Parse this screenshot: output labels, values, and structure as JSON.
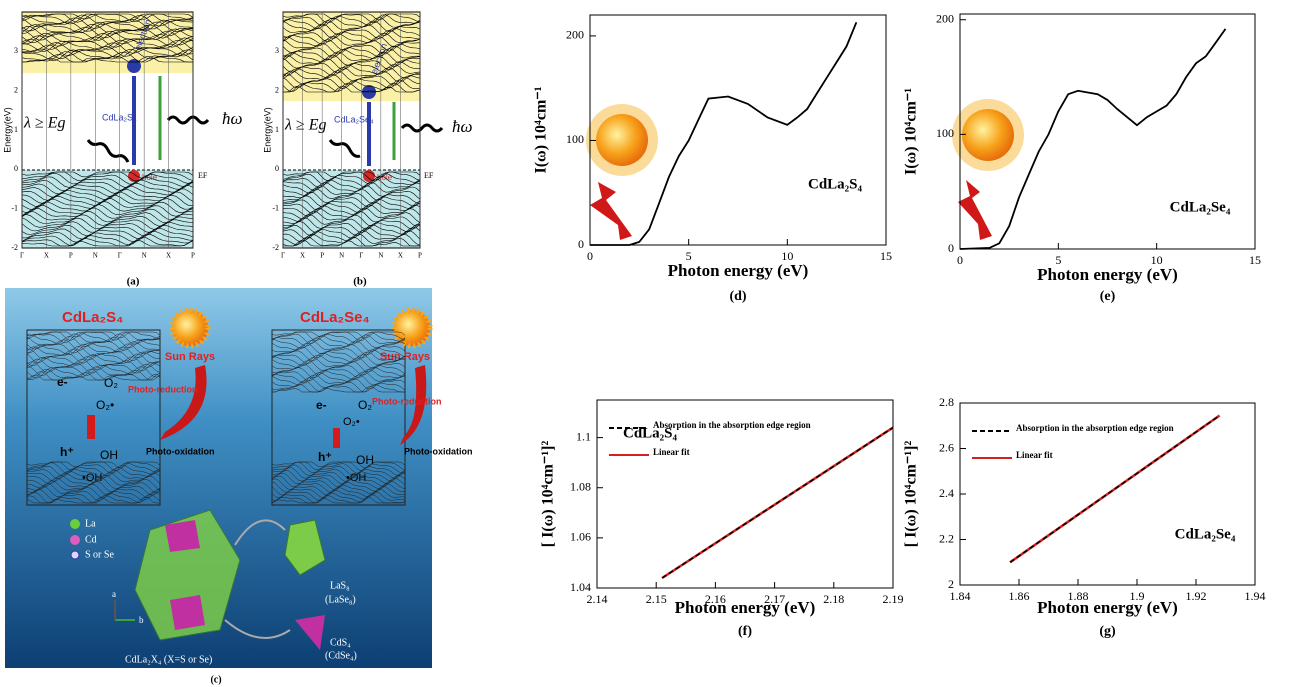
{
  "figure": {
    "panel_a": {
      "caption": "(a)",
      "ylabel": "Energy(eV)",
      "yticks": [
        3,
        2,
        1,
        0,
        -1,
        -2
      ],
      "kpoints": [
        "Γ",
        "X",
        "P",
        "N",
        "Γ",
        "N",
        "X",
        "P"
      ],
      "electron": "electron",
      "hole": "hole",
      "compound": "CdLa₂S₄",
      "lambda": "λ ≥ Eg",
      "emission": "ħω",
      "fermi": "EF"
    },
    "panel_b": {
      "caption": "(b)",
      "ylabel": "Energy(eV)",
      "yticks": [
        3,
        2,
        1,
        0,
        -1,
        -2
      ],
      "kpoints": [
        "Γ",
        "X",
        "P",
        "N",
        "Γ",
        "N",
        "X",
        "P"
      ],
      "electron": "electron",
      "hole": "hole",
      "compound": "CdLa₂Se₄",
      "lambda": "λ ≥ Eg",
      "emission": "ħω",
      "fermi": "EF"
    },
    "panel_c": {
      "caption": "(c)",
      "left_title": "CdLa₂S₄",
      "right_title": "CdLa₂Se₄",
      "sun_left": "Sun Rays",
      "sun_right": "Sun Rays",
      "reduction_left": "Photo-reduction",
      "reduction_right": "Photo-reduction",
      "oxidation_left": "Photo-oxidation",
      "oxidation_right": "Photo-oxidation",
      "electron": "e-",
      "o2": "O₂",
      "superoxide": "O₂•",
      "hole": "h⁺",
      "oh": "OH",
      "radical": "•OH",
      "legend_la": "La",
      "legend_cd": "Cd",
      "legend_x": "S or Se",
      "las8": "LaS₈",
      "lase8": "(LaSe₈)",
      "cds4": "CdS₄",
      "cdse4": "(CdSe₄)",
      "formula": "CdLa₂X₄ (X=S or Se)",
      "axis_a": "a",
      "axis_b": "b"
    }
  },
  "chart_data": [
    {
      "type": "line",
      "caption": "(d)",
      "annotation": "CdLa₂S₄",
      "xlabel": "Photon energy (eV)",
      "ylabel": "I(ω) 10⁴cm⁻¹",
      "color": "#000000",
      "x": [
        0,
        2,
        2.5,
        3,
        3.5,
        4,
        4.5,
        5,
        5.5,
        6,
        7,
        8,
        9,
        10,
        10.5,
        11,
        11.5,
        12,
        12.5,
        13,
        13.5
      ],
      "values": [
        0,
        0,
        3,
        15,
        40,
        65,
        85,
        100,
        120,
        140,
        142,
        135,
        122,
        115,
        122,
        130,
        145,
        160,
        175,
        190,
        213
      ],
      "xlim": [
        0,
        15
      ],
      "xticks": [
        0,
        5,
        10,
        15
      ],
      "ylim": [
        0,
        220
      ],
      "yticks": [
        0,
        100,
        200
      ]
    },
    {
      "type": "line",
      "caption": "(e)",
      "annotation": "CdLa₂Se₄",
      "xlabel": "Photon energy (eV)",
      "ylabel": "I(ω) 10⁴cm⁻¹",
      "color": "#000000",
      "x": [
        0,
        1.5,
        2,
        2.5,
        3,
        3.5,
        4,
        4.5,
        5,
        5.5,
        6,
        7,
        7.5,
        8,
        9,
        9.5,
        10,
        10.5,
        11,
        11.5,
        12,
        12.5,
        13,
        13.5
      ],
      "values": [
        0,
        1,
        5,
        20,
        45,
        65,
        85,
        100,
        120,
        135,
        138,
        135,
        130,
        122,
        108,
        115,
        120,
        125,
        135,
        150,
        162,
        168,
        180,
        192
      ],
      "xlim": [
        0,
        15
      ],
      "xticks": [
        0,
        5,
        10,
        15
      ],
      "ylim": [
        0,
        205
      ],
      "yticks": [
        0,
        100,
        200
      ]
    },
    {
      "type": "line",
      "caption": "(f)",
      "annotation": "CdLa₂S₄",
      "xlabel": "Photon energy (eV)",
      "ylabel": "[ I(ω) 10⁴cm⁻¹]²",
      "x": [
        2.151,
        2.19
      ],
      "series": [
        {
          "name": "Absorption in the absorption edge region",
          "color": "#000000",
          "style": "dashed",
          "values": [
            1.044,
            1.104
          ]
        },
        {
          "name": "Linear fit",
          "color": "#d42020",
          "style": "solid",
          "values": [
            1.044,
            1.104
          ]
        }
      ],
      "xlim": [
        2.14,
        2.19
      ],
      "xticks": [
        2.14,
        2.15,
        2.16,
        2.17,
        2.18,
        2.19
      ],
      "ylim": [
        1.04,
        1.115
      ],
      "yticks": [
        1.04,
        1.06,
        1.08,
        1.1
      ]
    },
    {
      "type": "line",
      "caption": "(g)",
      "annotation": "CdLa₂Se₄",
      "xlabel": "Photon energy (eV)",
      "ylabel": "[ I(ω) 10⁴cm⁻¹]²",
      "x": [
        1.857,
        1.928
      ],
      "series": [
        {
          "name": "Absorption in the absorption edge region",
          "color": "#000000",
          "style": "dashed",
          "values": [
            2.1,
            2.745
          ]
        },
        {
          "name": "Linear fit",
          "color": "#d42020",
          "style": "solid",
          "values": [
            2.1,
            2.745
          ]
        }
      ],
      "xlim": [
        1.84,
        1.94
      ],
      "xticks": [
        1.84,
        1.86,
        1.88,
        1.9,
        1.92,
        1.94
      ],
      "ylim": [
        2,
        2.8
      ],
      "yticks": [
        2,
        2.2,
        2.4,
        2.6,
        2.8
      ]
    }
  ]
}
